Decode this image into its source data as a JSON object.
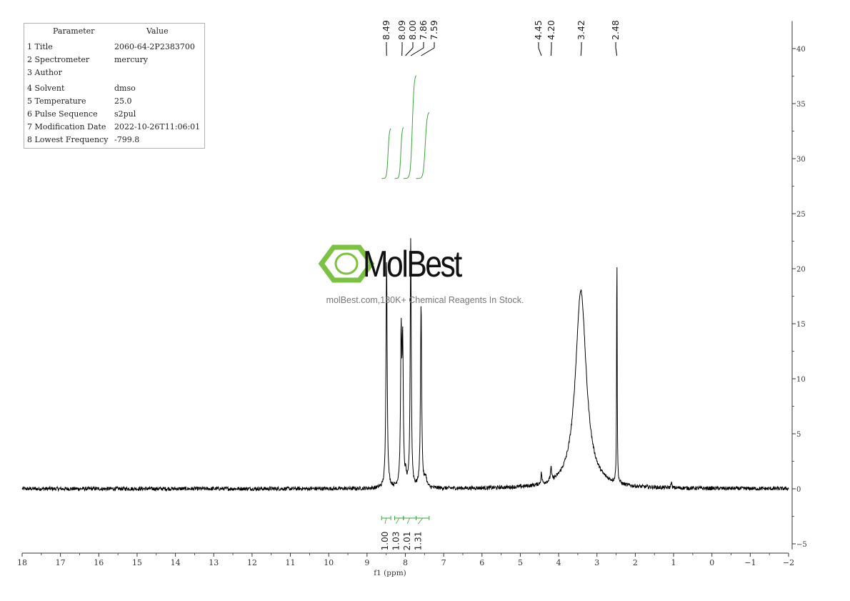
{
  "watermark": {
    "brand": "MolBest",
    "tagline": "molBest.com,180K+ Chemical Reagents In Stock.",
    "color": "#7cc242"
  },
  "parameters": {
    "header": [
      "Parameter",
      "Value"
    ],
    "rows": [
      {
        "name": "1 Title",
        "value": "2060-64-2P2383700"
      },
      {
        "name": "2 Spectrometer",
        "value": "mercury"
      },
      {
        "name": "3 Author",
        "value": ""
      },
      {
        "name": "4 Solvent",
        "value": "dmso"
      },
      {
        "name": "5 Temperature",
        "value": "25.0"
      },
      {
        "name": "6 Pulse Sequence",
        "value": "s2pul"
      },
      {
        "name": "7 Modification Date",
        "value": "2022-10-26T11:06:01"
      },
      {
        "name": "8 Lowest Frequency",
        "value": "-799.8"
      }
    ]
  },
  "chart_data": {
    "type": "line",
    "xlabel": "f1 (ppm)",
    "xlim": [
      18,
      -2
    ],
    "ylim": [
      -5.5,
      42.5
    ],
    "x_ticks": [
      18,
      17,
      16,
      15,
      14,
      13,
      12,
      11,
      10,
      9,
      8,
      7,
      6,
      5,
      4,
      3,
      2,
      1,
      0,
      -1,
      -2
    ],
    "y_ticks": [
      -5,
      0,
      5,
      10,
      15,
      20,
      25,
      30,
      35,
      40
    ],
    "peak_labels": [
      "8.49",
      "8.09",
      "8.00",
      "7.86",
      "7.59",
      "4.45",
      "4.20",
      "3.42",
      "2.48"
    ],
    "peak_positions": [
      8.49,
      8.09,
      8.0,
      7.86,
      7.59,
      4.45,
      4.2,
      3.42,
      2.48
    ],
    "peaks": [
      {
        "ppm": 8.49,
        "height": 21.0,
        "width": 0.018
      },
      {
        "ppm": 8.11,
        "height": 13.3,
        "width": 0.018
      },
      {
        "ppm": 8.07,
        "height": 12.5,
        "width": 0.018
      },
      {
        "ppm": 7.99,
        "height": 0.8,
        "width": 0.02
      },
      {
        "ppm": 7.86,
        "height": 22.8,
        "width": 0.016
      },
      {
        "ppm": 7.59,
        "height": 16.8,
        "width": 0.018
      },
      {
        "ppm": 7.47,
        "height": 0.9,
        "width": 0.03
      },
      {
        "ppm": 4.45,
        "height": 1.0,
        "width": 0.015
      },
      {
        "ppm": 4.2,
        "height": 1.3,
        "width": 0.015
      },
      {
        "ppm": 3.42,
        "height": 18.0,
        "width": 0.17
      },
      {
        "ppm": 2.48,
        "height": 22.3,
        "width": 0.008
      },
      {
        "ppm": 1.06,
        "height": 0.6,
        "width": 0.012
      }
    ],
    "integrals": [
      {
        "from": 8.62,
        "to": 8.38,
        "value": "1.00",
        "y_start": 28.2,
        "y_end": 32.8
      },
      {
        "from": 8.28,
        "to": 8.05,
        "value": "1.03",
        "y_start": 28.2,
        "y_end": 32.9
      },
      {
        "from": 8.05,
        "to": 7.72,
        "value": "2.01",
        "y_start": 28.2,
        "y_end": 37.7
      },
      {
        "from": 7.72,
        "to": 7.38,
        "value": "1.31",
        "y_start": 28.2,
        "y_end": 34.3
      }
    ],
    "colors": {
      "spectrum": "#000000",
      "integral": "#3aa63a",
      "axis": "#333333"
    }
  }
}
